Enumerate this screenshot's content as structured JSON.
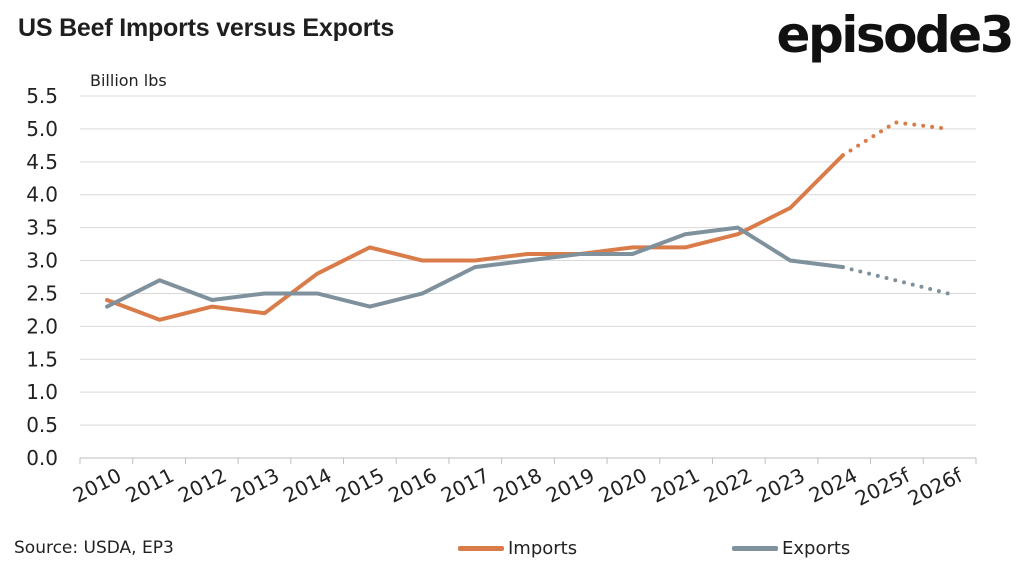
{
  "title": "US Beef Imports versus Exports",
  "logo_text": "episode3",
  "source": "Source: USDA, EP3",
  "colors": {
    "imports": "#d97c4a",
    "exports": "#7f919d",
    "grid": "#d9d9d9"
  },
  "chart_data": {
    "type": "line",
    "title": "US Beef Imports versus Exports",
    "ylabel": "Billion lbs",
    "xlabel": "",
    "ylim": [
      0,
      5.5
    ],
    "yticks": [
      "0.0",
      "0.5",
      "1.0",
      "1.5",
      "2.0",
      "2.5",
      "3.0",
      "3.5",
      "4.0",
      "4.5",
      "5.0",
      "5.5"
    ],
    "categories": [
      "2010",
      "2011",
      "2012",
      "2013",
      "2014",
      "2015",
      "2016",
      "2017",
      "2018",
      "2019",
      "2020",
      "2021",
      "2022",
      "2023",
      "2024",
      "2025f",
      "2026f"
    ],
    "forecast_from_index": 14,
    "series": [
      {
        "name": "Imports",
        "values": [
          2.4,
          2.1,
          2.3,
          2.2,
          2.8,
          3.2,
          3.0,
          3.0,
          3.1,
          3.1,
          3.2,
          3.2,
          3.4,
          3.8,
          4.6,
          5.1,
          5.0
        ]
      },
      {
        "name": "Exports",
        "values": [
          2.3,
          2.7,
          2.4,
          2.5,
          2.5,
          2.3,
          2.5,
          2.9,
          3.0,
          3.1,
          3.1,
          3.4,
          3.5,
          3.0,
          2.9,
          2.7,
          2.5
        ]
      }
    ],
    "grid": true,
    "legend": "bottom"
  }
}
